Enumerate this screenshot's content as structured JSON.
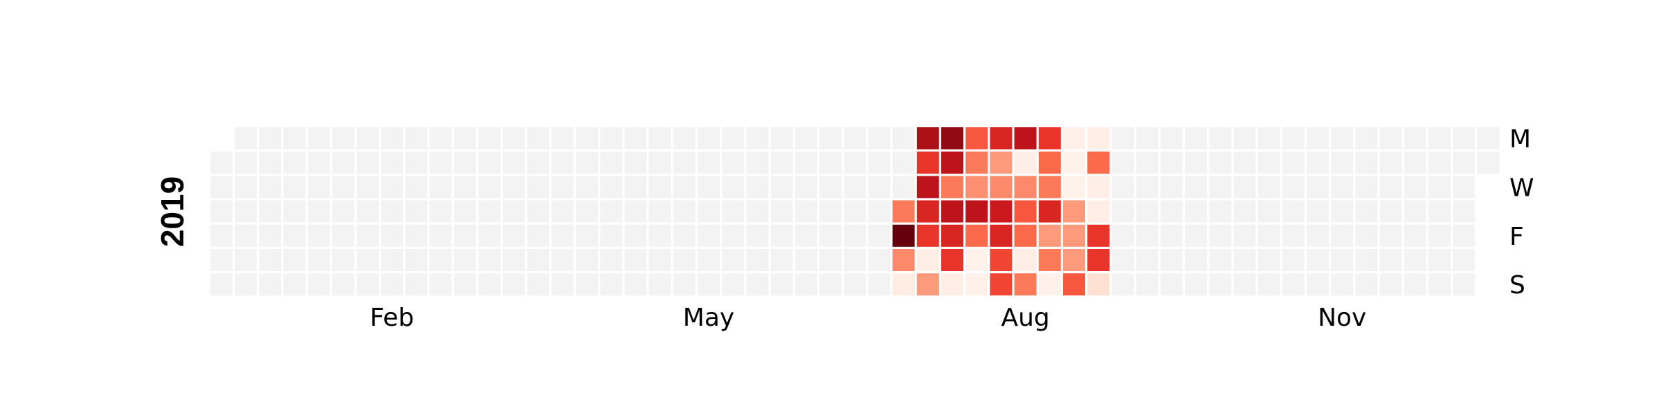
{
  "chart_data": {
    "type": "heatmap",
    "year": "2019",
    "month_ticks": [
      {
        "label": "Feb",
        "week": 7
      },
      {
        "label": "May",
        "week": 20
      },
      {
        "label": "Aug",
        "week": 33
      },
      {
        "label": "Nov",
        "week": 46
      }
    ],
    "day_ticks": [
      {
        "label": "M",
        "day": 0
      },
      {
        "label": "W",
        "day": 2
      },
      {
        "label": "F",
        "day": 4
      },
      {
        "label": "S",
        "day": 6
      }
    ],
    "colormap": "Reds",
    "empty_color": "#f3f3f3",
    "value_range": [
      0,
      1
    ],
    "first_week_offset_days": 1,
    "total_days": 365,
    "weeks": 53,
    "active_values": [
      {
        "week": 28,
        "values": [
          null,
          null,
          null,
          0.45,
          1.0,
          0.4,
          0.05
        ]
      },
      {
        "week": 29,
        "values": [
          0.85,
          0.65,
          0.8,
          0.7,
          0.65,
          0.04,
          0.35
        ]
      },
      {
        "week": 30,
        "values": [
          0.92,
          0.8,
          0.45,
          0.8,
          0.7,
          0.65,
          0.04
        ]
      },
      {
        "week": 31,
        "values": [
          0.55,
          0.45,
          0.38,
          0.8,
          0.5,
          0.02,
          0.03
        ]
      },
      {
        "week": 32,
        "values": [
          0.7,
          0.35,
          0.4,
          0.75,
          0.7,
          0.6,
          0.6
        ]
      },
      {
        "week": 33,
        "values": [
          0.8,
          0.04,
          0.4,
          0.55,
          0.5,
          0.04,
          0.45
        ]
      },
      {
        "week": 34,
        "values": [
          0.65,
          0.5,
          0.45,
          0.7,
          0.35,
          0.45,
          0.03
        ]
      },
      {
        "week": 35,
        "values": [
          0.03,
          0.02,
          0.02,
          0.35,
          0.35,
          0.35,
          0.55
        ]
      },
      {
        "week": 36,
        "values": [
          0.04,
          0.5,
          0.04,
          0.04,
          0.65,
          0.65,
          0.12
        ]
      }
    ]
  }
}
